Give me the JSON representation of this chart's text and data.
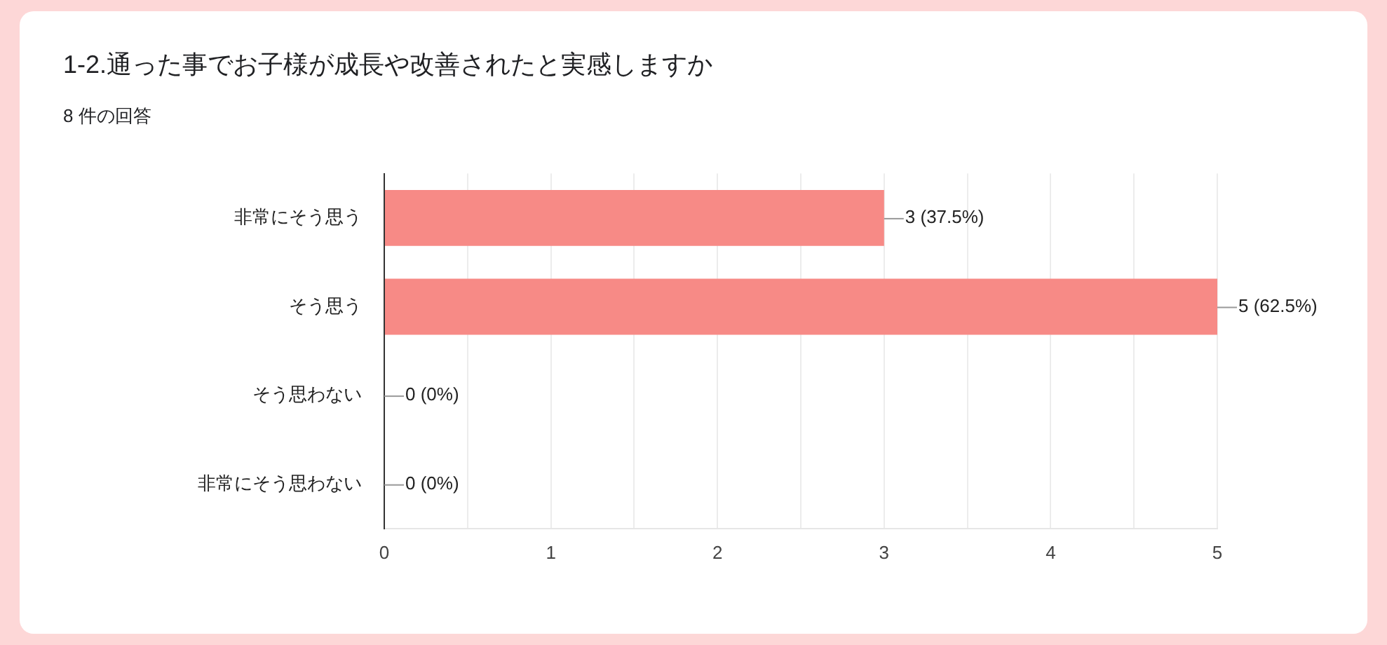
{
  "chart_data": {
    "type": "bar",
    "title": "1-2.通った事でお子様が成長や改善されたと実感しますか",
    "subtitle": "8 件の回答",
    "orientation": "horizontal",
    "categories": [
      "非常にそう思う",
      "そう思う",
      "そう思わない",
      "非常にそう思わない"
    ],
    "values": [
      3,
      5,
      0,
      0
    ],
    "color": "#f78a86",
    "value_labels": [
      "3 (37.5%)",
      "5 (62.5%)",
      "0 (0%)",
      "0 (0%)"
    ],
    "xlim": [
      0,
      5
    ],
    "xticks": [
      0,
      {
        "value": 0.5,
        "label": null
      },
      1,
      {
        "value": 1.5,
        "label": null
      },
      2,
      {
        "value": 2.5,
        "label": null
      },
      3,
      {
        "value": 3.5,
        "label": null
      },
      4,
      {
        "value": 4.5,
        "label": null
      },
      5
    ],
    "grid": "x"
  }
}
